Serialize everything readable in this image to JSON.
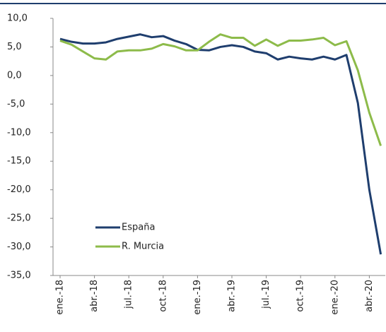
{
  "chart_data": {
    "type": "line",
    "categories": [
      "ene.-18",
      null,
      null,
      "abr.-18",
      null,
      null,
      "jul.-18",
      null,
      null,
      "oct.-18",
      null,
      null,
      "ene.-19",
      null,
      null,
      "abr.-19",
      null,
      null,
      "jul.-19",
      null,
      null,
      "oct.-19",
      null,
      null,
      "ene.-20",
      null,
      null,
      "abr.-20",
      null
    ],
    "series": [
      {
        "name": "España",
        "color": "#1f3e6e",
        "values": [
          6.4,
          5.9,
          5.6,
          5.6,
          5.8,
          6.4,
          6.8,
          7.2,
          6.7,
          6.9,
          6.1,
          5.5,
          4.5,
          4.4,
          5.0,
          5.3,
          5.0,
          4.2,
          3.9,
          2.8,
          3.3,
          3.0,
          2.8,
          3.3,
          2.8,
          3.6,
          -4.8,
          -20.0,
          -31.3
        ]
      },
      {
        "name": "R. Murcia",
        "color": "#8dbb4a",
        "values": [
          6.1,
          5.4,
          4.2,
          3.0,
          2.8,
          4.2,
          4.4,
          4.4,
          4.7,
          5.5,
          5.1,
          4.4,
          4.4,
          5.9,
          7.2,
          6.6,
          6.6,
          5.2,
          6.3,
          5.2,
          6.1,
          6.1,
          6.3,
          6.6,
          5.3,
          6.0,
          0.9,
          -6.5,
          -12.3
        ]
      }
    ],
    "ylim": [
      -35,
      10
    ],
    "yticks": [
      {
        "value": -35,
        "label": "-35,0"
      },
      {
        "value": -30,
        "label": "-30,0"
      },
      {
        "value": -25,
        "label": "-25,0"
      },
      {
        "value": -20,
        "label": "-20,0"
      },
      {
        "value": -15,
        "label": "-15,0"
      },
      {
        "value": -10,
        "label": "-10,0"
      },
      {
        "value": -5,
        "label": "-5,0"
      },
      {
        "value": 0,
        "label": "0,0"
      },
      {
        "value": 5,
        "label": "5,0"
      },
      {
        "value": 10,
        "label": "10,0"
      }
    ],
    "grid": false
  }
}
